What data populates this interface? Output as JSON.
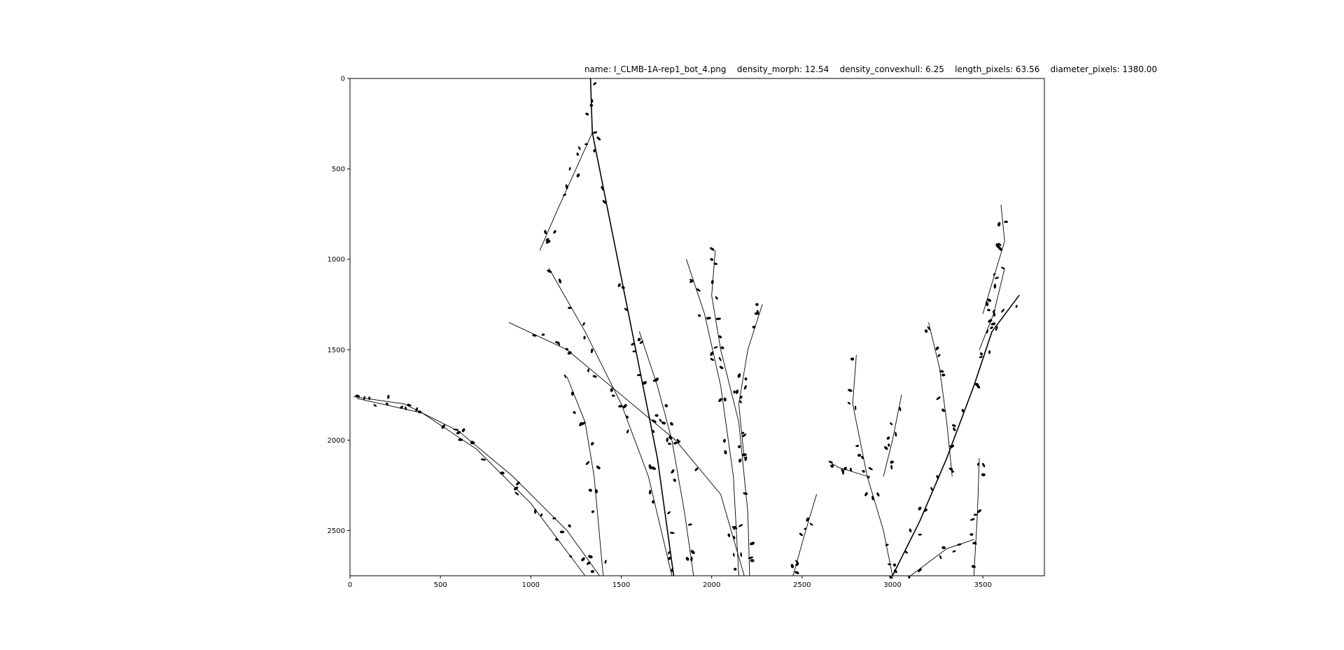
{
  "title": {
    "name": "name: I_CLMB-1A-rep1_bot_4.png",
    "density_morph": "density_morph: 12.54",
    "density_convexhull": "density_convexhull: 6.25",
    "length_pixels": "length_pixels: 63.56",
    "diameter_pixels": "diameter_pixels: 1380.00"
  },
  "axes": {
    "x_range": [
      0,
      3840
    ],
    "y_range": [
      2750,
      0
    ],
    "x_ticks": [
      "0",
      "500",
      "1000",
      "1500",
      "2000",
      "2500",
      "3000",
      "3500"
    ],
    "y_ticks": [
      "0",
      "500",
      "1000",
      "1500",
      "2000",
      "2500"
    ],
    "x_tick_values": [
      0,
      500,
      1000,
      1500,
      2000,
      2500,
      3000,
      3500
    ],
    "y_tick_values": [
      0,
      500,
      1000,
      1500,
      2000,
      2500
    ]
  },
  "image": {
    "description_icon": "binary-plant-silhouette-icon",
    "foreground_color": "#000000",
    "background_color": "#ffffff"
  }
}
